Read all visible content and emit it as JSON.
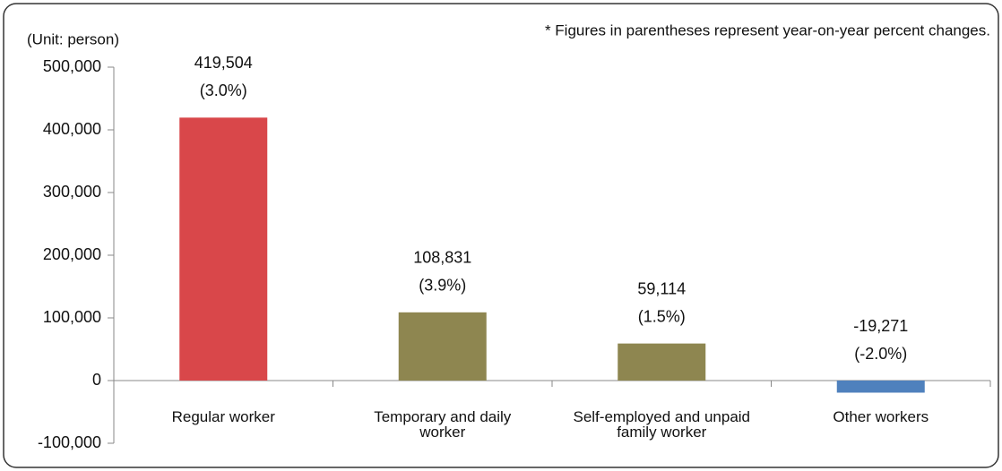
{
  "chart_data": {
    "type": "bar",
    "unit_label": "(Unit: person)",
    "note": "* Figures in parentheses represent year-on-year percent changes.",
    "categories": [
      "Regular worker",
      "Temporary and daily worker",
      "Self-employed and unpaid family worker",
      "Other workers"
    ],
    "values": [
      419504,
      108831,
      59114,
      -19271
    ],
    "value_labels": [
      "419,504",
      "108,831",
      "59,114",
      "-19,271"
    ],
    "change_labels": [
      "(3.0%)",
      "(3.9%)",
      "(1.5%)",
      "(-2.0%)"
    ],
    "colors": [
      "#d9474a",
      "#8e8650",
      "#8e8650",
      "#4f81bd"
    ],
    "ylim": [
      -100000,
      500000
    ],
    "yticks": [
      {
        "value": -100000,
        "label": "-100,000"
      },
      0,
      {
        "value": 100000,
        "label": "100,000"
      },
      {
        "value": 200000,
        "label": "200,000"
      },
      {
        "value": 300000,
        "label": "300,000"
      },
      {
        "value": 400000,
        "label": "400,000"
      },
      {
        "value": 500000,
        "label": "500,000"
      }
    ],
    "grid": false
  }
}
